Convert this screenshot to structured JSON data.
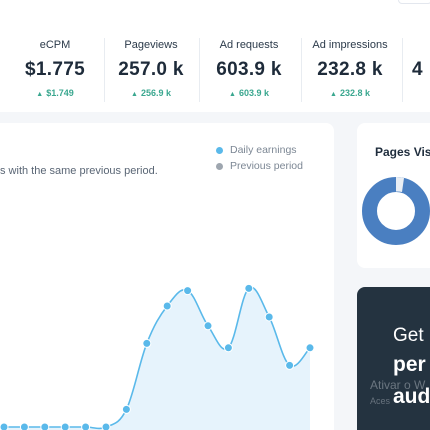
{
  "stats": [
    {
      "label": "eCPM",
      "value": "$1.775",
      "delta": "$1.749"
    },
    {
      "label": "Pageviews",
      "value": "257.0 k",
      "delta": "256.9 k"
    },
    {
      "label": "Ad requests",
      "value": "603.9 k",
      "delta": "603.9 k"
    },
    {
      "label": "Ad impressions",
      "value": "232.8 k",
      "delta": "232.8 k"
    },
    {
      "label": "",
      "value": "4",
      "delta": ""
    }
  ],
  "earnings_chart": {
    "subtitle": "s with the same previous period.",
    "legend": [
      {
        "label": "Daily earnings",
        "color": "#5ab9ea"
      },
      {
        "label": "Previous period",
        "color": "#9ea6af"
      }
    ]
  },
  "chart_data": {
    "type": "area",
    "series": [
      {
        "name": "Daily earnings",
        "values": [
          0,
          0,
          0,
          0,
          0,
          0,
          8,
          38,
          55,
          62,
          46,
          36,
          63,
          50,
          28,
          36
        ]
      }
    ],
    "ylim": [
      0,
      100
    ]
  },
  "pages_card": {
    "title": "Pages Vis",
    "donut": {
      "primary_color": "#4a7fc1",
      "secondary_color": "#e9eef4"
    }
  },
  "promo": {
    "line1": "Get",
    "line2": "per",
    "line3": "aud"
  },
  "watermark": {
    "title": "Ativar o W",
    "subtitle": "Aces"
  },
  "colors": {
    "accent": "#5ab9ea",
    "positive": "#3aa78f",
    "promo_bg": "#243340"
  }
}
